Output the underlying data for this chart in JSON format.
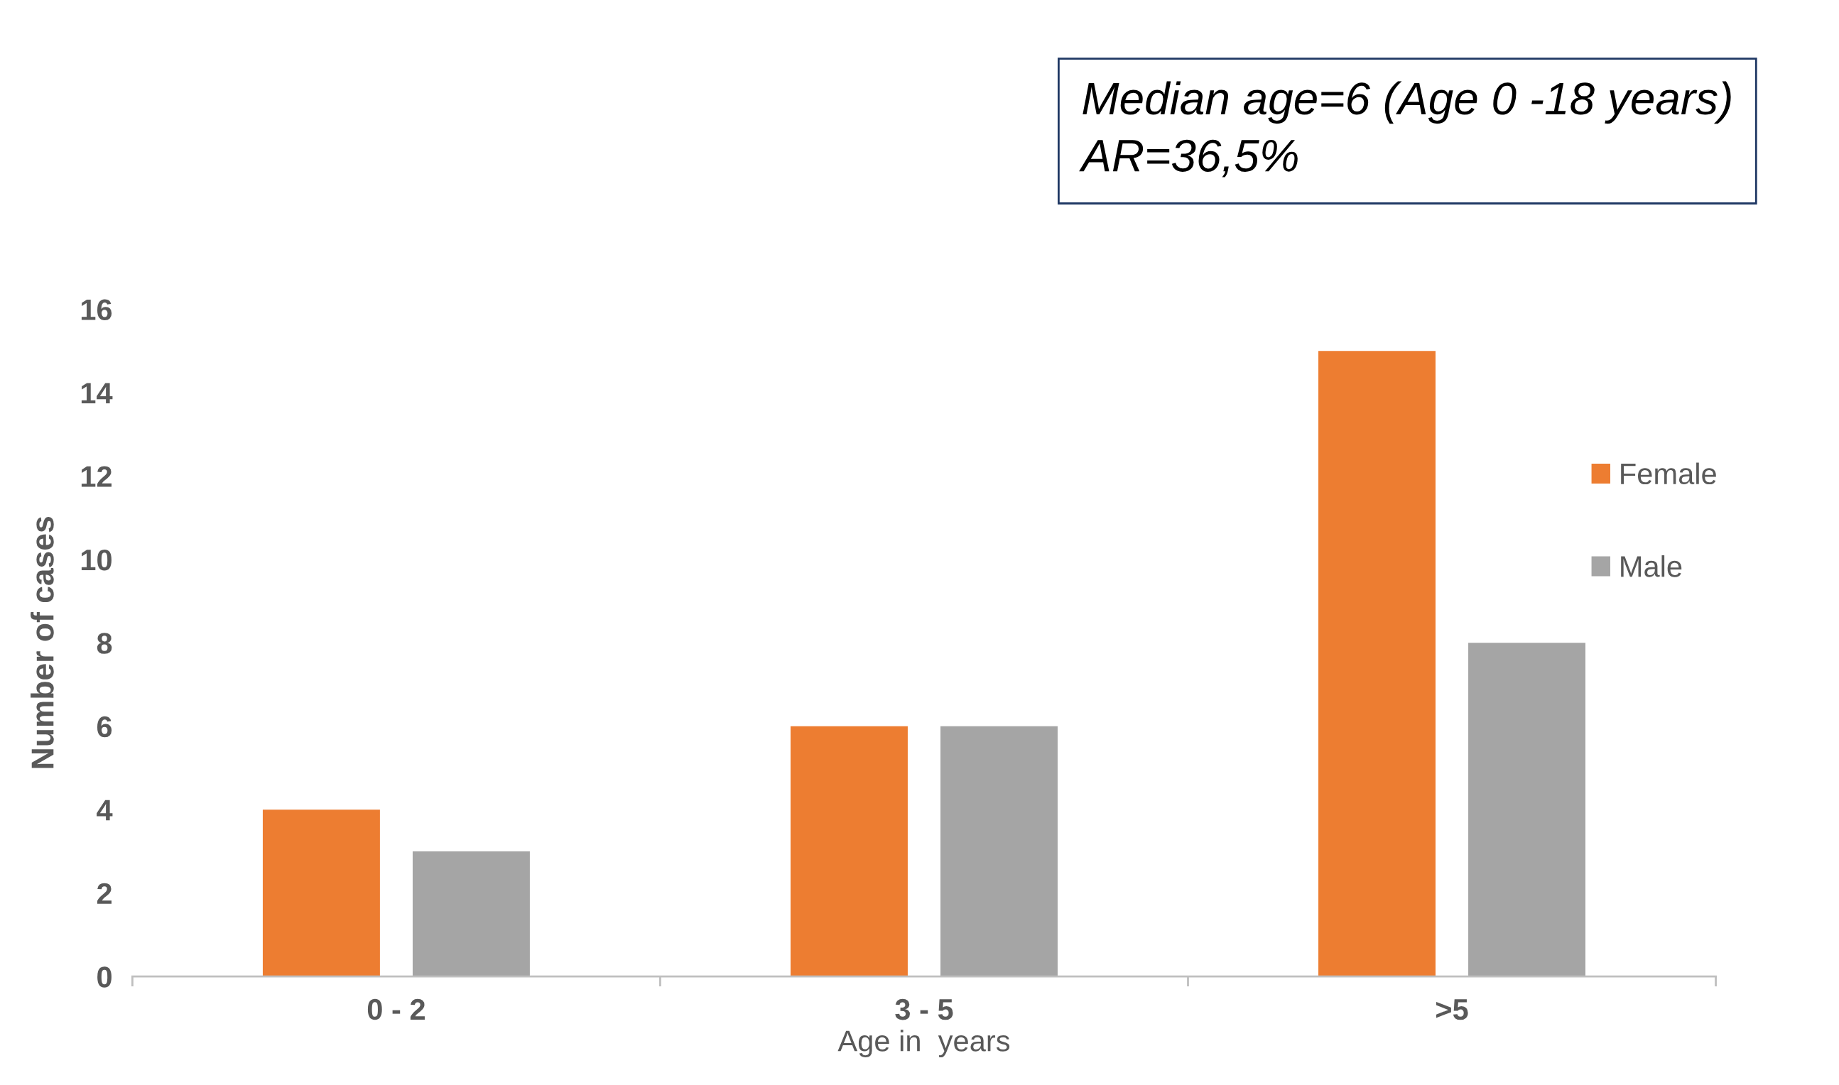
{
  "chart_data": {
    "type": "bar",
    "categories": [
      "0 - 2",
      "3 - 5",
      ">5"
    ],
    "series": [
      {
        "name": "Female",
        "color": "#ed7d31",
        "values": [
          4,
          6,
          15
        ]
      },
      {
        "name": "Male",
        "color": "#a5a5a5",
        "values": [
          3,
          6,
          8
        ]
      }
    ],
    "xlabel": "Age in  years",
    "ylabel": "Number of cases",
    "ylim": [
      0,
      16
    ],
    "yticks": [
      0,
      2,
      4,
      6,
      8,
      10,
      12,
      14,
      16
    ],
    "annotations": [
      "Median age=6 (Age 0 -18 years)",
      "AR=36,5%"
    ],
    "legend": "right",
    "grid": false
  }
}
